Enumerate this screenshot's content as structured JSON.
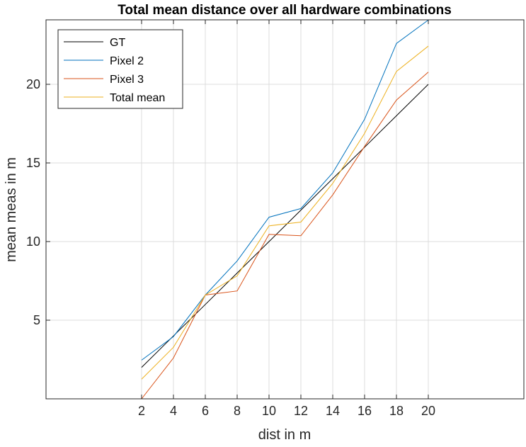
{
  "chart_data": {
    "type": "line",
    "title": "Total mean distance over all hardware combinations",
    "xlabel": "dist in m",
    "ylabel": "mean meas in m",
    "x": [
      2,
      4,
      6,
      8,
      10,
      12,
      14,
      16,
      18,
      20
    ],
    "xticks": [
      2,
      4,
      6,
      8,
      10,
      12,
      14,
      16,
      18,
      20
    ],
    "yticks": [
      5,
      10,
      15,
      20
    ],
    "xlim": [
      -4,
      26
    ],
    "ylim": [
      0,
      24.1
    ],
    "grid": true,
    "legend_placement": "top-left",
    "series": [
      {
        "name": "GT",
        "color": "#000000",
        "values": [
          2,
          4,
          6,
          8,
          10,
          12,
          14,
          16,
          18,
          20
        ]
      },
      {
        "name": "Pixel 2",
        "color": "#0072BD",
        "values": [
          2.46,
          3.96,
          6.6,
          8.77,
          11.55,
          12.1,
          14.37,
          17.78,
          22.6,
          24.09
        ]
      },
      {
        "name": "Pixel 3",
        "color": "#D95319",
        "values": [
          0,
          2.6,
          6.6,
          6.86,
          10.46,
          10.37,
          12.97,
          16.05,
          19.0,
          20.78
        ]
      },
      {
        "name": "Total mean",
        "color": "#EDB120",
        "values": [
          1.25,
          3.28,
          6.6,
          7.82,
          11.0,
          11.24,
          13.7,
          16.88,
          20.82,
          22.43
        ]
      }
    ]
  }
}
